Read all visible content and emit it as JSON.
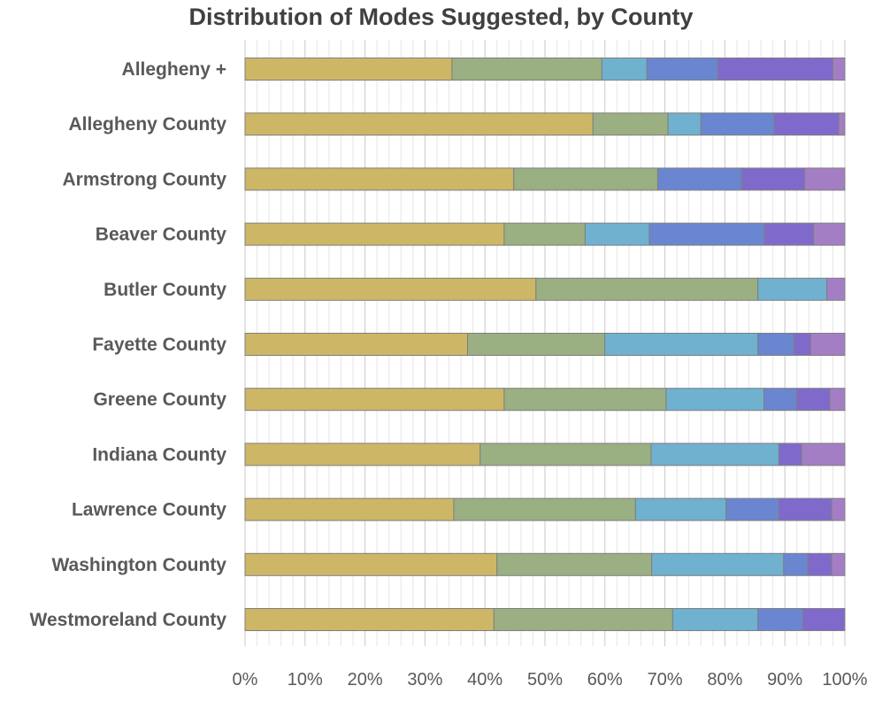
{
  "chart_data": {
    "type": "bar",
    "orientation": "horizontal",
    "stacked": "percent",
    "title": "Distribution of Modes Suggested, by County",
    "categories": [
      "Allegheny +",
      "Allegheny County",
      "Armstrong County",
      "Beaver County",
      "Butler County",
      "Fayette County",
      "Greene County",
      "Indiana County",
      "Lawrence County",
      "Washington County",
      "Westmoreland County"
    ],
    "series": [
      {
        "color": "#CDB766",
        "values": [
          34.5,
          58.0,
          44.8,
          43.2,
          48.5,
          37.1,
          43.2,
          39.2,
          34.8,
          42.0,
          41.5
        ]
      },
      {
        "color": "#9AAF82",
        "values": [
          25.0,
          12.5,
          24.0,
          13.5,
          37.0,
          22.9,
          27.0,
          28.5,
          30.3,
          25.8,
          29.8
        ]
      },
      {
        "color": "#6FB1CF",
        "values": [
          7.5,
          5.5,
          0,
          10.7,
          11.5,
          25.5,
          16.3,
          21.3,
          15.1,
          22.0,
          14.2
        ]
      },
      {
        "color": "#6A86D0",
        "values": [
          11.8,
          12.2,
          14.0,
          19.2,
          0,
          6.0,
          5.5,
          0,
          8.8,
          4.0,
          7.5
        ]
      },
      {
        "color": "#7F6ACC",
        "values": [
          19.2,
          10.8,
          10.5,
          8.2,
          0,
          2.8,
          5.5,
          3.8,
          8.8,
          4.0,
          7.0
        ]
      },
      {
        "color": "#A47EC5",
        "values": [
          2.0,
          1.0,
          6.7,
          5.2,
          3.0,
          5.7,
          2.5,
          7.2,
          2.2,
          2.2,
          0
        ]
      }
    ],
    "xlim": [
      0,
      100
    ],
    "x_ticks": [
      "0%",
      "10%",
      "20%",
      "30%",
      "40%",
      "50%",
      "60%",
      "70%",
      "80%",
      "90%",
      "100%"
    ],
    "grid": "vertical"
  }
}
